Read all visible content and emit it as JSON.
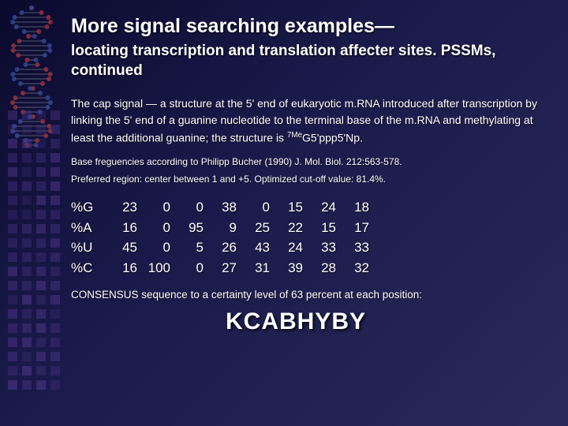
{
  "slide": {
    "title": "More signal searching examples—",
    "subtitle": "locating transcription and translation affecter sites. PSSMs, continued",
    "paragraph_html": "The cap signal — a structure at the 5' end of eukaryotic m.RNA introduced after transcription by linking the 5' end of a guanine nucleotide to the terminal base of the m.RNA and methylating at least the additional guanine; the structure is <sup>7Me</sup>G5'ppp5'Np.",
    "citation": "Base freguencies according to Philipp Bucher (1990) J. Mol. Biol. 212:563-578.",
    "region": "Preferred region:  center between 1 and +5. Optimized cut-off value:  81.4%.",
    "consensus_label": "CONSENSUS sequence to a certainty level of 63 percent at each position:",
    "consensus": "KCABHYBY"
  },
  "table": {
    "row_headers": [
      "%G",
      "%A",
      "%U",
      "%C"
    ],
    "rows": [
      [
        23,
        0,
        0,
        38,
        0,
        15,
        24,
        18
      ],
      [
        16,
        0,
        95,
        9,
        25,
        22,
        15,
        17
      ],
      [
        45,
        0,
        5,
        26,
        43,
        24,
        33,
        33
      ],
      [
        16,
        100,
        0,
        27,
        31,
        39,
        28,
        32
      ]
    ]
  },
  "deco": {
    "square_color1": "#c04060",
    "square_color2": "#6040a0",
    "helix_colors": [
      "#d04040",
      "#4060c0",
      "#e0e0e0"
    ]
  }
}
